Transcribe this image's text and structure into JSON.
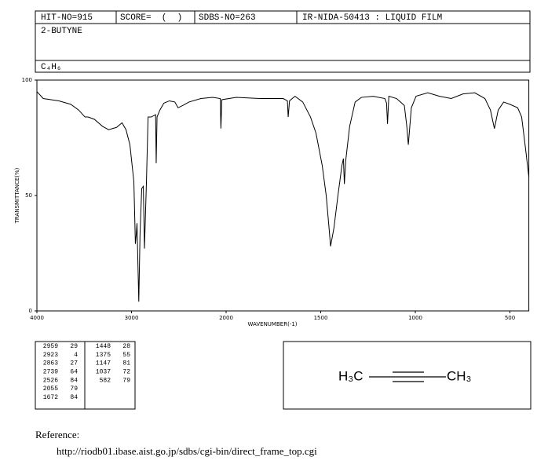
{
  "header": {
    "hit_no": "HIT-NO=915",
    "score": "SCORE=  (  )",
    "sdbs_no": "SDBS-NO=263",
    "method": "IR-NIDA-50413 : LIQUID FILM"
  },
  "compound": {
    "name": "2-BUTYNE",
    "formula": "C₄H₆"
  },
  "chart_data": {
    "type": "line",
    "color": "#000000",
    "ylabel": "TRANSMITTANCE(%)",
    "xlabel": "WAVENUMBER(-1)",
    "xlim": [
      4000,
      400
    ],
    "xticks": [
      4000,
      3000,
      2000,
      1500,
      1000,
      500
    ],
    "ylim": [
      0,
      100
    ],
    "yticks": [
      0,
      50,
      100
    ],
    "x": [
      4000,
      3933,
      3767,
      3642,
      3558,
      3492,
      3458,
      3392,
      3308,
      3242,
      3158,
      3100,
      3058,
      3017,
      2975,
      2959,
      2950,
      2942,
      2923,
      2910,
      2892,
      2875,
      2863,
      2842,
      2825,
      2792,
      2745,
      2739,
      2730,
      2700,
      2658,
      2600,
      2542,
      2508,
      2458,
      2392,
      2267,
      2142,
      2062,
      2055,
      2045,
      1946,
      1822,
      1698,
      1676,
      1672,
      1665,
      1636,
      1595,
      1554,
      1525,
      1492,
      1471,
      1455,
      1448,
      1430,
      1409,
      1388,
      1380,
      1375,
      1368,
      1347,
      1318,
      1285,
      1223,
      1161,
      1152,
      1147,
      1140,
      1099,
      1058,
      1045,
      1037,
      1021,
      996,
      934,
      872,
      810,
      748,
      686,
      632,
      603,
      582,
      562,
      533,
      500,
      459,
      438,
      417,
      400
    ],
    "values": [
      95,
      92,
      91,
      89.5,
      87,
      84,
      84,
      83,
      80,
      78.5,
      79.5,
      81.5,
      78.5,
      72,
      56,
      29,
      33,
      38,
      4,
      33,
      53,
      54,
      27,
      56,
      84,
      84,
      85,
      64,
      84,
      87,
      90,
      91,
      90.5,
      88,
      89,
      90.5,
      92,
      92.5,
      92,
      79,
      91.5,
      92.5,
      92,
      92,
      91,
      84,
      91,
      93,
      90.5,
      84,
      77,
      63,
      50,
      35,
      28,
      36,
      50,
      63,
      66,
      55,
      65,
      80,
      90.5,
      92.5,
      93,
      92,
      90,
      81,
      93,
      92,
      89,
      80,
      72,
      88,
      93,
      94.5,
      93,
      92,
      94,
      94.5,
      92,
      87,
      79,
      87,
      90.5,
      89.5,
      88,
      84,
      70,
      58
    ]
  },
  "peaks": [
    [
      "2959",
      "29"
    ],
    [
      "2923",
      "4"
    ],
    [
      "2863",
      "27"
    ],
    [
      "2739",
      "64"
    ],
    [
      "2526",
      "84"
    ],
    [
      "2055",
      "79"
    ],
    [
      "1672",
      "84"
    ],
    [
      "1448",
      "28"
    ],
    [
      "1375",
      "55"
    ],
    [
      "1147",
      "81"
    ],
    [
      "1037",
      "72"
    ],
    [
      "582",
      "79"
    ]
  ],
  "structure": {
    "left": "H₃C",
    "right": "CH₃"
  },
  "reference": {
    "label": "Reference:",
    "url": "http://riodb01.ibase.aist.go.jp/sdbs/cgi-bin/direct_frame_top.cgi"
  }
}
